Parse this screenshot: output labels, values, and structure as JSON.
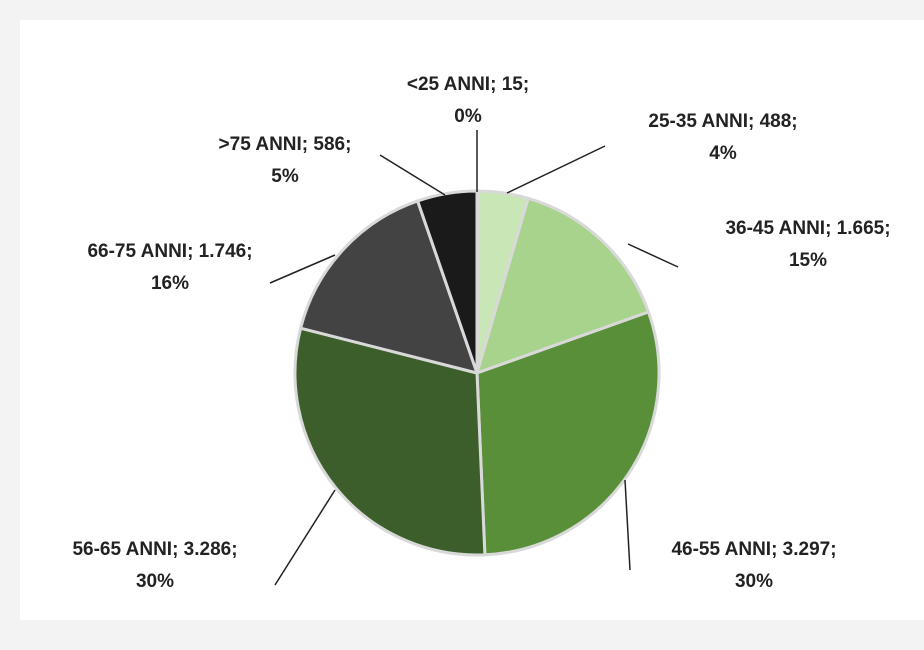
{
  "chart_data": {
    "type": "pie",
    "categories": [
      "<25 ANNI",
      "25-35 ANNI",
      "36-45 ANNI",
      "46-55 ANNI",
      "56-65 ANNI",
      "66-75 ANNI",
      ">75 ANNI"
    ],
    "values": [
      15,
      488,
      1665,
      3297,
      3286,
      1746,
      586
    ],
    "data_labels": [
      {
        "line1": "<25 ANNI; 15;",
        "line2": "0%"
      },
      {
        "line1": "25-35 ANNI; 488;",
        "line2": "4%"
      },
      {
        "line1": "36-45 ANNI; 1.665;",
        "line2": "15%"
      },
      {
        "line1": "46-55 ANNI; 3.297;",
        "line2": "30%"
      },
      {
        "line1": "56-65 ANNI; 3.286;",
        "line2": "30%"
      },
      {
        "line1": "66-75 ANNI; 1.746;",
        "line2": "16%"
      },
      {
        "line1": ">75 ANNI; 586;",
        "line2": "5%"
      }
    ],
    "colors": [
      "#c4e3b0",
      "#c9e6b6",
      "#a8d38c",
      "#5a8f3a",
      "#3c5e2b",
      "#434343",
      "#1a1a1a"
    ]
  }
}
